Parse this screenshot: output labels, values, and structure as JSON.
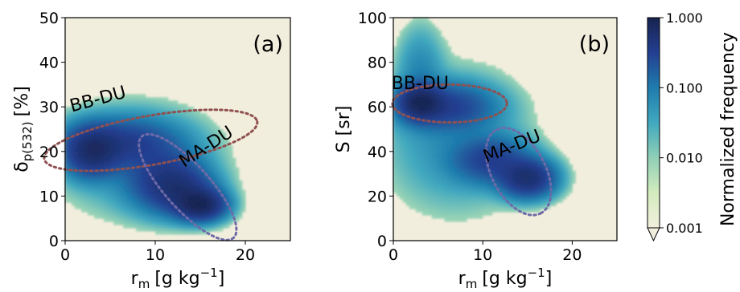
{
  "chart_data": [
    {
      "type": "heatmap",
      "panel_label": "(a)",
      "xlabel_base": "r",
      "xlabel_sub": "m",
      "xlabel_units": "[g kg",
      "xlabel_exp": "−1",
      "xlabel_close": "]",
      "ylabel_base": "δ",
      "ylabel_sub": "p(532)",
      "ylabel_units": "[%]",
      "xlim": [
        0,
        25
      ],
      "ylim": [
        0,
        50
      ],
      "xticks": [
        0,
        10,
        20
      ],
      "yticks": [
        0,
        10,
        20,
        30,
        40,
        50
      ],
      "xtick_labels": [
        "0",
        "10",
        "20"
      ],
      "ytick_labels": [
        "0",
        "10",
        "20",
        "30",
        "40",
        "50"
      ],
      "annotations": [
        {
          "text": "BB-DU",
          "x": 3.8,
          "y": 30.5,
          "rotation": -15,
          "color": "#b06e68"
        },
        {
          "text": "MA-DU",
          "x": 16,
          "y": 20,
          "rotation": -33,
          "color": "#6c66ad"
        }
      ],
      "ellipses": [
        {
          "name": "BB-DU",
          "cx": 9.5,
          "cy": 22.5,
          "rx": 12,
          "ry": 5.5,
          "angle_deg": 10,
          "color": "#8f5050"
        },
        {
          "name": "MA-DU",
          "cx": 13.6,
          "cy": 12,
          "rx": 7.6,
          "ry": 5,
          "angle_deg": -48,
          "color": "#6f6aa8"
        }
      ],
      "density_blobs": [
        {
          "x": 3,
          "y": 20,
          "sx": 1.8,
          "sy": 3.2,
          "w": 0.55
        },
        {
          "x": 6.5,
          "y": 22,
          "sx": 3.5,
          "sy": 3.2,
          "w": 0.3
        },
        {
          "x": 11,
          "y": 14,
          "sx": 2.5,
          "sy": 4.0,
          "w": 0.32
        },
        {
          "x": 15,
          "y": 8,
          "sx": 1.6,
          "sy": 2.0,
          "w": 0.75
        },
        {
          "x": 13,
          "y": 11,
          "sx": 2.2,
          "sy": 3.0,
          "w": 0.35
        },
        {
          "x": 8,
          "y": 18,
          "sx": 5.0,
          "sy": 7.0,
          "w": 0.06
        }
      ]
    },
    {
      "type": "heatmap",
      "panel_label": "(b)",
      "xlabel_base": "r",
      "xlabel_sub": "m",
      "xlabel_units": "[g kg",
      "xlabel_exp": "−1",
      "xlabel_close": "]",
      "ylabel_base": "S [sr]",
      "xlim": [
        0,
        25
      ],
      "ylim": [
        0,
        100
      ],
      "xticks": [
        0,
        10,
        20
      ],
      "yticks": [
        0,
        20,
        40,
        60,
        80,
        100
      ],
      "xtick_labels": [
        "0",
        "10",
        "20"
      ],
      "ytick_labels": [
        "0",
        "20",
        "40",
        "60",
        "80",
        "100"
      ],
      "annotations": [
        {
          "text": "BB-DU",
          "x": 3,
          "y": 68,
          "rotation": 0,
          "color": "#b06e68"
        },
        {
          "text": "MA-DU",
          "x": 13.5,
          "y": 40,
          "rotation": -22,
          "color": "#6c66ad"
        }
      ],
      "ellipses": [
        {
          "name": "BB-DU",
          "cx": 6.3,
          "cy": 61.5,
          "rx": 6.4,
          "ry": 8.5,
          "angle_deg": 0,
          "color": "#8f5050"
        },
        {
          "name": "MA-DU",
          "cx": 14,
          "cy": 31,
          "rx": 5.3,
          "ry": 12,
          "angle_deg": -62,
          "color": "#6f6aa8"
        }
      ],
      "density_blobs": [
        {
          "x": 3,
          "y": 62,
          "sx": 1.4,
          "sy": 4.5,
          "w": 0.7
        },
        {
          "x": 6,
          "y": 60,
          "sx": 3.0,
          "sy": 6.0,
          "w": 0.3
        },
        {
          "x": 11,
          "y": 36,
          "sx": 2.5,
          "sy": 6.0,
          "w": 0.3
        },
        {
          "x": 15,
          "y": 28,
          "sx": 1.8,
          "sy": 5.0,
          "w": 0.55
        },
        {
          "x": 7,
          "y": 45,
          "sx": 4.5,
          "sy": 18.0,
          "w": 0.06
        },
        {
          "x": 3,
          "y": 75,
          "sx": 1.5,
          "sy": 12.0,
          "w": 0.07
        }
      ]
    }
  ],
  "colorbar": {
    "label": "Normalized frequency",
    "scale": "log",
    "range": [
      0.001,
      1.0
    ],
    "ticks": [
      0.001,
      0.01,
      0.1,
      1.0
    ],
    "tick_labels": [
      "0.001",
      "0.010",
      "0.100",
      "1.000"
    ],
    "extend": "min",
    "colormap": "YlGnBu",
    "colormap_stops": [
      "#f1eedd",
      "#d4ecbe",
      "#8fcfb6",
      "#41a8bf",
      "#1f7cad",
      "#233f91",
      "#17234f"
    ]
  },
  "colors": {
    "background": "#f2eedd",
    "bb_du": "#b06e68",
    "ma_du": "#6c66ad"
  }
}
